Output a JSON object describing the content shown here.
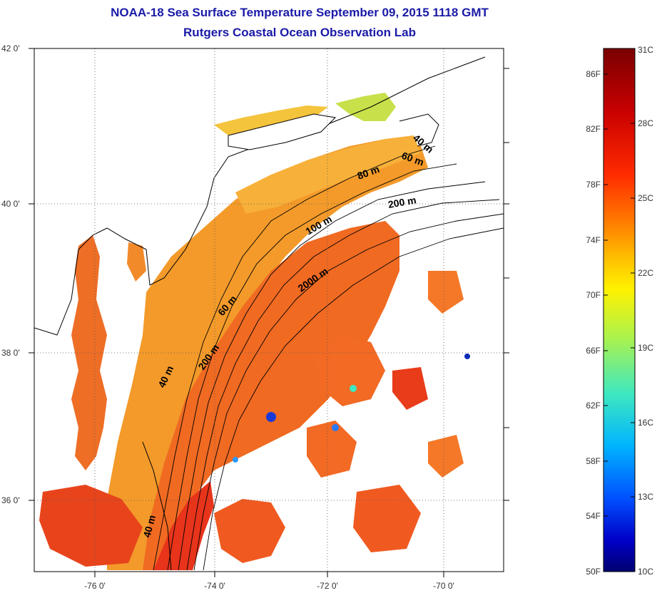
{
  "header": {
    "title": "NOAA-18 Sea Surface Temperature September 09, 2015 1118 GMT",
    "subtitle": "Rutgers Coastal Ocean Observation Lab"
  },
  "axes": {
    "lat_labels": [
      "42 0'",
      "40 0'",
      "38 0'",
      "36 0'"
    ],
    "lon_labels": [
      "-76 0'",
      "-74 0'",
      "-72 0'",
      "-70 0'"
    ]
  },
  "contours": {
    "labels": [
      "40 m",
      "60 m",
      "80 m",
      "200 m",
      "100 m",
      "2000 m",
      "60 m",
      "200 m",
      "40 m",
      "40 m"
    ]
  },
  "colorbar": {
    "fahrenheit": [
      "86F",
      "82F",
      "78F",
      "74F",
      "70F",
      "66F",
      "62F",
      "58F",
      "54F",
      "50F"
    ],
    "celsius": [
      "31C",
      "28C",
      "25C",
      "22C",
      "19C",
      "16C",
      "13C",
      "10C"
    ],
    "colors": [
      "#7a0000",
      "#c80000",
      "#ff2a00",
      "#ff7a00",
      "#ffbe00",
      "#fff200",
      "#aef24a",
      "#3ee8c0",
      "#00b4ff",
      "#0050ff",
      "#0000c8",
      "#000070"
    ]
  },
  "palette": {
    "land": "#ffffff",
    "title": "#1a1aa8"
  }
}
